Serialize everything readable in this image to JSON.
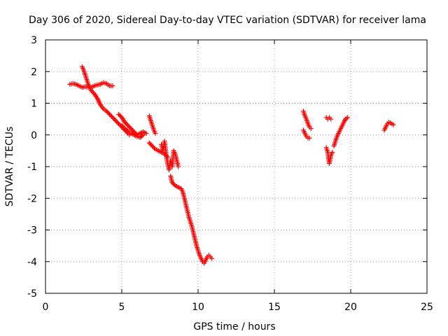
{
  "chart_data": {
    "type": "scatter",
    "title": "Day 306 of 2020, Sidereal Day-to-day VTEC variation (SDTVAR) for receiver lama",
    "xlabel": "GPS time / hours",
    "ylabel": "SDTVAR / TECUs",
    "xlim": [
      0,
      25
    ],
    "ylim": [
      -5,
      3
    ],
    "xticks": [
      "0",
      "5",
      "10",
      "15",
      "20",
      "25"
    ],
    "yticks": [
      "3",
      "2",
      "1",
      "0",
      "-1",
      "-2",
      "-3",
      "-4",
      "-5"
    ],
    "grid": true,
    "marker": "plus",
    "color": "#ff0000",
    "series": [
      {
        "segments": [
          [
            [
              1.6,
              1.6
            ],
            [
              1.8,
              1.62
            ],
            [
              2.0,
              1.6
            ],
            [
              2.2,
              1.55
            ],
            [
              2.4,
              1.5
            ],
            [
              2.6,
              1.52
            ],
            [
              2.8,
              1.5
            ],
            [
              3.0,
              1.5
            ],
            [
              3.2,
              1.55
            ],
            [
              3.4,
              1.58
            ],
            [
              3.6,
              1.6
            ],
            [
              3.8,
              1.65
            ],
            [
              4.0,
              1.62
            ],
            [
              4.2,
              1.55
            ],
            [
              4.4,
              1.55
            ]
          ],
          [
            [
              2.4,
              2.15
            ],
            [
              2.5,
              2.05
            ],
            [
              2.6,
              1.9
            ],
            [
              2.7,
              1.75
            ],
            [
              2.8,
              1.6
            ],
            [
              2.9,
              1.5
            ],
            [
              3.0,
              1.4
            ],
            [
              3.2,
              1.3
            ],
            [
              3.4,
              1.15
            ],
            [
              3.6,
              0.95
            ],
            [
              3.8,
              0.82
            ],
            [
              4.0,
              0.75
            ],
            [
              4.2,
              0.65
            ],
            [
              4.4,
              0.55
            ],
            [
              4.6,
              0.45
            ],
            [
              4.8,
              0.35
            ],
            [
              5.0,
              0.25
            ],
            [
              5.2,
              0.15
            ],
            [
              5.4,
              0.05
            ],
            [
              5.5,
              0.0
            ]
          ],
          [
            [
              4.8,
              0.65
            ],
            [
              5.0,
              0.55
            ],
            [
              5.2,
              0.4
            ],
            [
              5.4,
              0.3
            ],
            [
              5.6,
              0.2
            ],
            [
              5.8,
              0.1
            ],
            [
              6.0,
              0.0
            ],
            [
              6.2,
              0.05
            ],
            [
              6.4,
              0.1
            ],
            [
              6.6,
              0.05
            ]
          ],
          [
            [
              5.0,
              0.3
            ],
            [
              5.2,
              0.2
            ],
            [
              5.4,
              0.12
            ],
            [
              5.6,
              0.05
            ],
            [
              5.8,
              0.0
            ],
            [
              6.0,
              -0.05
            ],
            [
              6.2,
              -0.08
            ],
            [
              6.4,
              0.0
            ]
          ],
          [
            [
              6.8,
              0.6
            ],
            [
              6.9,
              0.45
            ],
            [
              7.0,
              0.3
            ],
            [
              7.1,
              0.15
            ],
            [
              7.2,
              0.05
            ]
          ],
          [
            [
              6.8,
              -0.25
            ],
            [
              7.0,
              -0.35
            ],
            [
              7.2,
              -0.45
            ],
            [
              7.4,
              -0.5
            ],
            [
              7.6,
              -0.55
            ],
            [
              7.8,
              -0.6
            ],
            [
              8.0,
              -0.7
            ]
          ],
          [
            [
              7.6,
              -0.3
            ],
            [
              7.7,
              -0.5
            ],
            [
              7.8,
              -0.2
            ],
            [
              7.9,
              -0.6
            ],
            [
              8.0,
              -0.9
            ],
            [
              8.1,
              -1.1
            ],
            [
              8.2,
              -0.8
            ],
            [
              8.3,
              -1.0
            ],
            [
              8.4,
              -0.5
            ],
            [
              8.5,
              -0.6
            ],
            [
              8.6,
              -0.8
            ],
            [
              8.7,
              -1.0
            ]
          ],
          [
            [
              8.2,
              -1.3
            ],
            [
              8.3,
              -1.5
            ],
            [
              8.5,
              -1.6
            ],
            [
              8.7,
              -1.65
            ],
            [
              8.9,
              -1.7
            ],
            [
              9.0,
              -1.8
            ],
            [
              9.1,
              -2.0
            ],
            [
              9.2,
              -2.2
            ],
            [
              9.3,
              -2.4
            ],
            [
              9.4,
              -2.6
            ],
            [
              9.5,
              -2.75
            ],
            [
              9.6,
              -2.9
            ],
            [
              9.7,
              -3.1
            ],
            [
              9.8,
              -3.3
            ],
            [
              9.9,
              -3.5
            ],
            [
              10.0,
              -3.65
            ],
            [
              10.1,
              -3.8
            ],
            [
              10.2,
              -3.9
            ],
            [
              10.3,
              -4.0
            ],
            [
              10.4,
              -4.05
            ],
            [
              10.5,
              -3.95
            ],
            [
              10.6,
              -3.85
            ],
            [
              10.7,
              -3.8
            ],
            [
              10.8,
              -3.85
            ],
            [
              10.9,
              -3.9
            ]
          ],
          [
            [
              16.9,
              0.75
            ],
            [
              17.0,
              0.6
            ],
            [
              17.1,
              0.5
            ],
            [
              17.2,
              0.35
            ],
            [
              17.3,
              0.25
            ],
            [
              17.4,
              0.2
            ]
          ],
          [
            [
              16.9,
              0.15
            ],
            [
              17.0,
              0.05
            ],
            [
              17.1,
              -0.05
            ],
            [
              17.2,
              -0.1
            ],
            [
              17.3,
              -0.1
            ]
          ],
          [
            [
              18.4,
              0.55
            ],
            [
              18.5,
              0.5
            ],
            [
              18.6,
              0.55
            ],
            [
              18.7,
              0.5
            ]
          ],
          [
            [
              18.4,
              -0.4
            ],
            [
              18.5,
              -0.55
            ],
            [
              18.55,
              -0.75
            ],
            [
              18.6,
              -0.9
            ],
            [
              18.7,
              -0.65
            ],
            [
              18.8,
              -0.55
            ]
          ],
          [
            [
              18.9,
              -0.35
            ],
            [
              19.0,
              -0.2
            ],
            [
              19.1,
              -0.05
            ],
            [
              19.2,
              0.05
            ],
            [
              19.3,
              0.15
            ],
            [
              19.4,
              0.25
            ],
            [
              19.5,
              0.35
            ],
            [
              19.6,
              0.45
            ],
            [
              19.7,
              0.52
            ],
            [
              19.8,
              0.55
            ]
          ],
          [
            [
              22.2,
              0.15
            ],
            [
              22.3,
              0.25
            ],
            [
              22.4,
              0.35
            ],
            [
              22.5,
              0.4
            ],
            [
              22.6,
              0.38
            ],
            [
              22.7,
              0.35
            ],
            [
              22.8,
              0.32
            ]
          ]
        ]
      }
    ]
  }
}
